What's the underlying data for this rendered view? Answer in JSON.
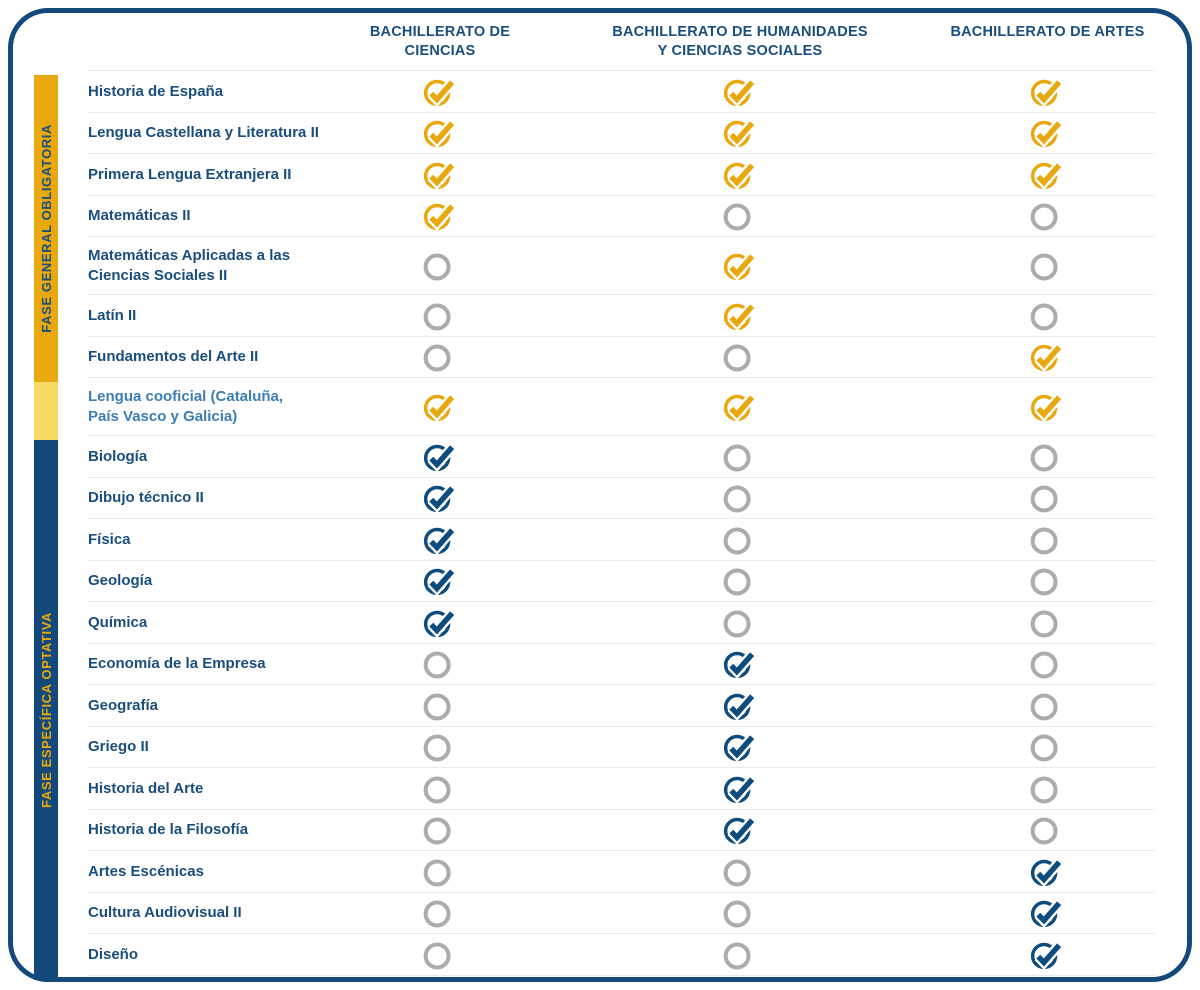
{
  "colors": {
    "frame_blue": "#14497B",
    "text_blue": "#1A4E7D",
    "icon_blue": "#0E4C7D",
    "cooficial_text_blue": "#3C7EB5",
    "gold": "#E9A80E",
    "gold_light": "#F8DB64",
    "empty_gray": "#ACACAC",
    "divider": "#EAEAEA"
  },
  "sidebar": {
    "phases": [
      {
        "id": "general",
        "label": "FASE GENERAL OBLIGATORIA",
        "bar_color": "#E9A80E",
        "label_color": "#1A4E7D"
      },
      {
        "id": "cooficial",
        "label": "",
        "bar_color": "#F8DB64",
        "label_color": ""
      },
      {
        "id": "especifica",
        "label": "FASE ESPECÍFICA OPTATIVA",
        "bar_color": "#14497B",
        "label_color": "#E9A80E"
      }
    ]
  },
  "chart_data": {
    "type": "table",
    "title": "",
    "legend_position": "none",
    "columns": [
      "BACHILLERATO DE CIENCIAS",
      "BACHILLERATO DE HUMANIDADES\nY CIENCIAS SOCIALES",
      "BACHILLERATO DE ARTES"
    ],
    "check_icon_meaning": "subject included in this bachillerato track",
    "rows": [
      {
        "label": "Historia de España",
        "phase": "general",
        "check": "yellow",
        "values": [
          true,
          true,
          true
        ]
      },
      {
        "label": "Lengua Castellana y Literatura II",
        "phase": "general",
        "check": "yellow",
        "values": [
          true,
          true,
          true
        ]
      },
      {
        "label": "Primera Lengua Extranjera II",
        "phase": "general",
        "check": "yellow",
        "values": [
          true,
          true,
          true
        ]
      },
      {
        "label": "Matemáticas II",
        "phase": "general",
        "check": "yellow",
        "values": [
          true,
          false,
          false
        ]
      },
      {
        "label": "Matemáticas Aplicadas a las\nCiencias Sociales II",
        "phase": "general",
        "check": "yellow",
        "values": [
          false,
          true,
          false
        ]
      },
      {
        "label": "Latín II",
        "phase": "general",
        "check": "yellow",
        "values": [
          false,
          true,
          false
        ]
      },
      {
        "label": "Fundamentos del Arte II",
        "phase": "general",
        "check": "yellow",
        "values": [
          false,
          false,
          true
        ]
      },
      {
        "label": "Lengua cooficial (Cataluña,\nPaís Vasco y Galicia)",
        "phase": "cooficial",
        "check": "yellow",
        "values": [
          true,
          true,
          true
        ]
      },
      {
        "label": "Biología",
        "phase": "especifica",
        "check": "blue",
        "values": [
          true,
          false,
          false
        ]
      },
      {
        "label": "Dibujo técnico II",
        "phase": "especifica",
        "check": "blue",
        "values": [
          true,
          false,
          false
        ]
      },
      {
        "label": "Física",
        "phase": "especifica",
        "check": "blue",
        "values": [
          true,
          false,
          false
        ]
      },
      {
        "label": "Geología",
        "phase": "especifica",
        "check": "blue",
        "values": [
          true,
          false,
          false
        ]
      },
      {
        "label": "Química",
        "phase": "especifica",
        "check": "blue",
        "values": [
          true,
          false,
          false
        ]
      },
      {
        "label": "Economía de la Empresa",
        "phase": "especifica",
        "check": "blue",
        "values": [
          false,
          true,
          false
        ]
      },
      {
        "label": "Geografía",
        "phase": "especifica",
        "check": "blue",
        "values": [
          false,
          true,
          false
        ]
      },
      {
        "label": "Griego II",
        "phase": "especifica",
        "check": "blue",
        "values": [
          false,
          true,
          false
        ]
      },
      {
        "label": "Historia del Arte",
        "phase": "especifica",
        "check": "blue",
        "values": [
          false,
          true,
          false
        ]
      },
      {
        "label": "Historia de la Filosofía",
        "phase": "especifica",
        "check": "blue",
        "values": [
          false,
          true,
          false
        ]
      },
      {
        "label": "Artes Escénicas",
        "phase": "especifica",
        "check": "blue",
        "values": [
          false,
          false,
          true
        ]
      },
      {
        "label": "Cultura Audiovisual II",
        "phase": "especifica",
        "check": "blue",
        "values": [
          false,
          false,
          true
        ]
      },
      {
        "label": "Diseño",
        "phase": "especifica",
        "check": "blue",
        "values": [
          false,
          false,
          true
        ]
      }
    ]
  }
}
